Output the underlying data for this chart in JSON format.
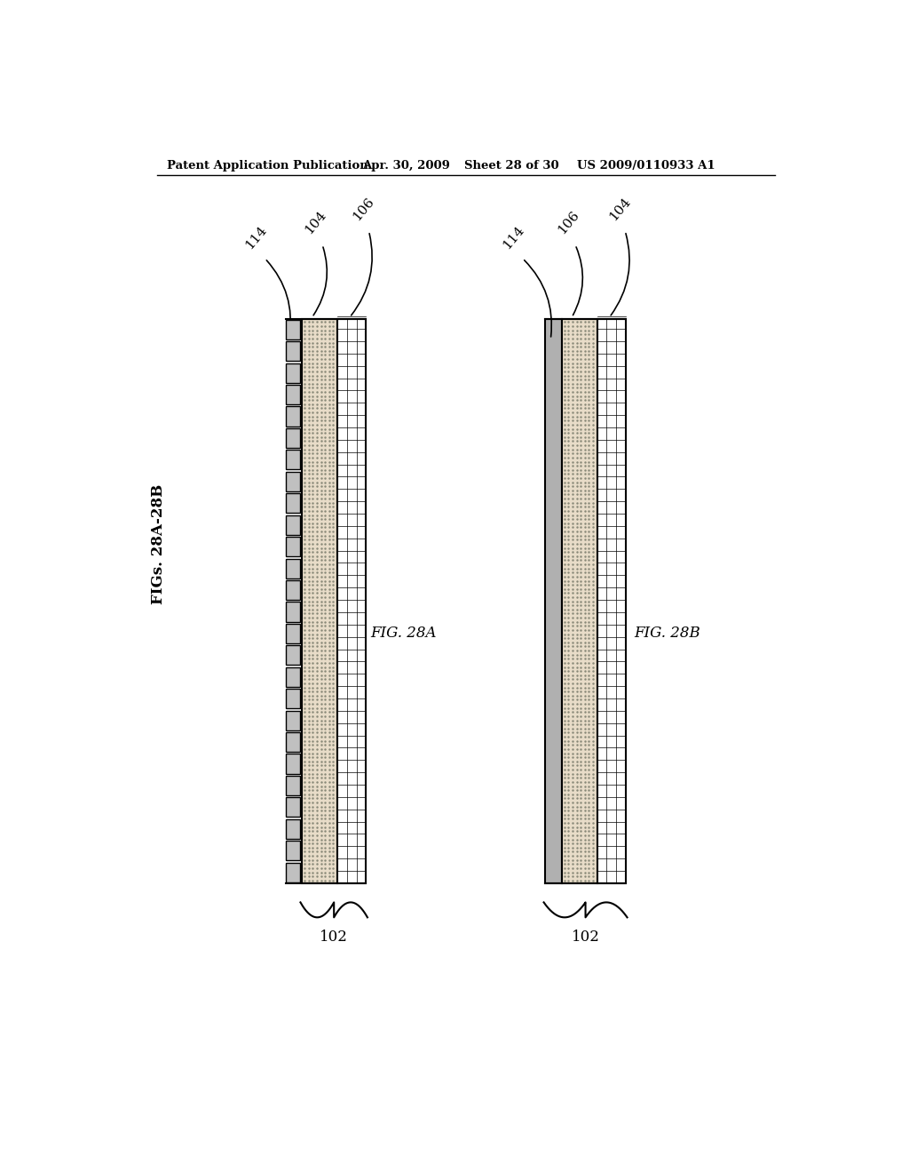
{
  "bg_color": "#ffffff",
  "header_text": "Patent Application Publication",
  "header_date": "Apr. 30, 2009",
  "header_sheet": "Sheet 28 of 30",
  "header_patent": "US 2009/0110933 A1",
  "fig_label_left": "FIGs. 28A-28B",
  "fig_28a_label": "FIG. 28A",
  "fig_28b_label": "FIG. 28B",
  "label_102": "102",
  "label_104": "104",
  "label_106": "106",
  "label_114": "114",
  "dotted_fill_color": "#e8dcc8",
  "grid_fill_color": "#ffffff",
  "square_fill_color": "#c0c0c0",
  "solid_fill_color": "#b0b0b0"
}
